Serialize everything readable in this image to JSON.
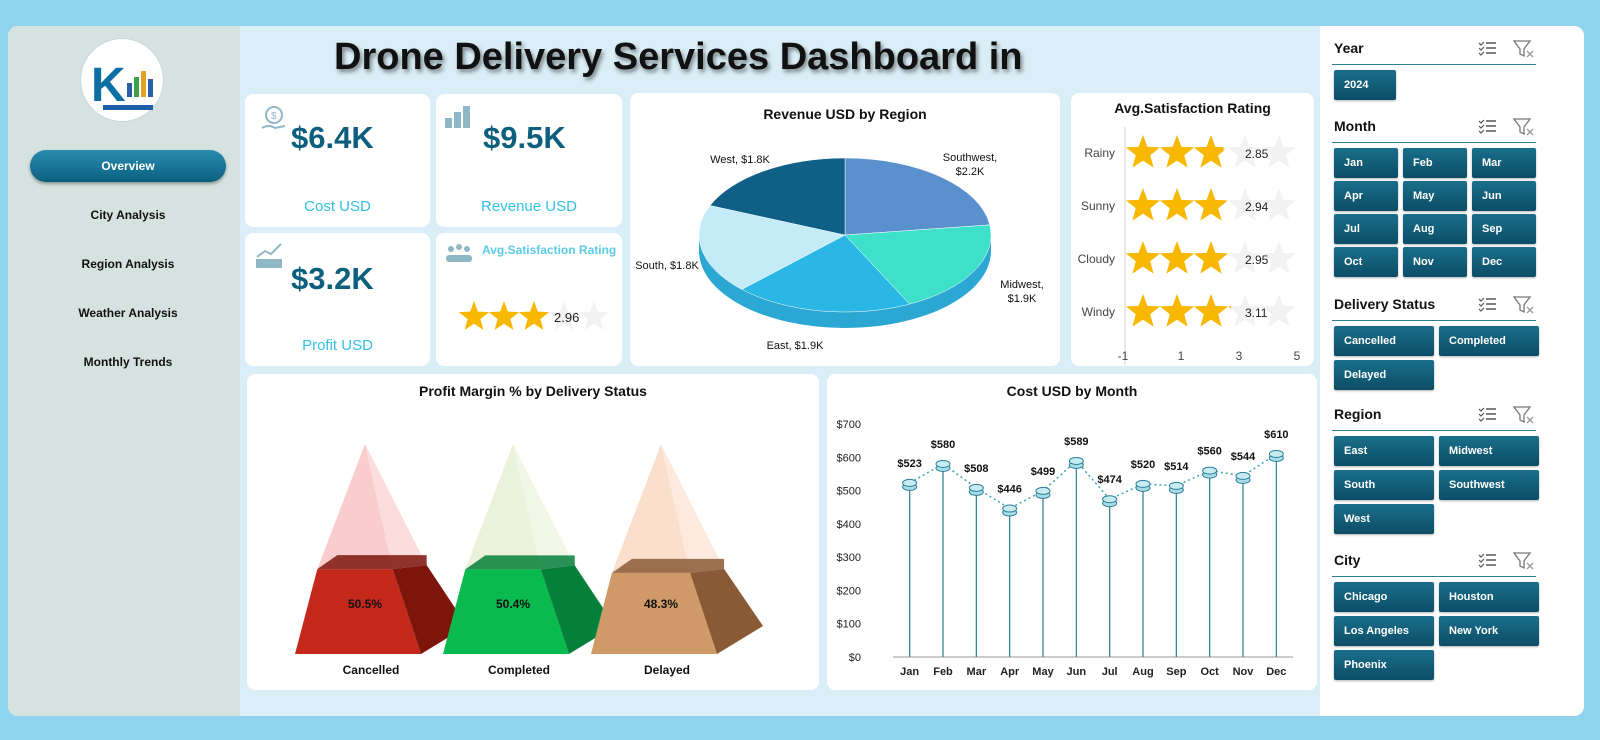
{
  "title": "Drone Delivery Services Dashboard in",
  "nav": {
    "items": [
      {
        "label": "Overview",
        "active": true
      },
      {
        "label": "City Analysis"
      },
      {
        "label": "Region Analysis"
      },
      {
        "label": "Weather Analysis"
      },
      {
        "label": "Monthly Trends"
      }
    ]
  },
  "kpis": {
    "cost": {
      "value": "$6.4K",
      "label": "Cost USD",
      "icon": "money-hand-icon"
    },
    "revenue": {
      "value": "$9.5K",
      "label": "Revenue USD",
      "icon": "coins-stack-icon"
    },
    "profit": {
      "value": "$3.2K",
      "label": "Profit USD",
      "icon": "profit-chart-icon"
    },
    "satisfaction": {
      "label": "Avg.Satisfaction Rating",
      "value": "2.96",
      "stars": 2.96,
      "icon": "people-rating-icon"
    }
  },
  "colors": {
    "accent": "#0d5f7e",
    "kpi_label": "#34c1e2",
    "star": "#f9b800",
    "slicer": "#0c4d66"
  },
  "chart_data": [
    {
      "type": "pie",
      "title": "Revenue USD by Region",
      "slices": [
        {
          "label": "Southwest",
          "value": 2.2,
          "display": "Southwest, $2.2K",
          "color": "#5b90cf"
        },
        {
          "label": "Midwest",
          "value": 1.9,
          "display": "Midwest, $1.9K",
          "color": "#3fe0c9"
        },
        {
          "label": "East",
          "value": 1.9,
          "display": "East, $1.9K",
          "color": "#2ab7e5"
        },
        {
          "label": "South",
          "value": 1.8,
          "display": "South, $1.8K",
          "color": "#c3ecf8"
        },
        {
          "label": "West",
          "value": 1.8,
          "display": "West, $1.8K",
          "color": "#0f5f86"
        }
      ]
    },
    {
      "type": "bar",
      "title": "Avg.Satisfaction Rating",
      "categories": [
        "Rainy",
        "Sunny",
        "Cloudy",
        "Windy"
      ],
      "values": [
        2.85,
        2.94,
        2.95,
        3.11
      ],
      "value_labels": [
        "2.85",
        "2.94",
        "2.95",
        "3.11"
      ],
      "xticks": [
        "-1",
        "1",
        "3",
        "5"
      ],
      "xlim": [
        -1,
        5
      ],
      "max_stars": 5
    },
    {
      "type": "bar",
      "title": "Profit Margin % by Delivery Status",
      "categories": [
        "Cancelled",
        "Completed",
        "Delayed"
      ],
      "values": [
        50.5,
        50.4,
        48.3
      ],
      "value_labels": [
        "50.5%",
        "50.4%",
        "48.3%"
      ],
      "colors": [
        "#c4281a",
        "#0aba4f",
        "#cf9a67"
      ]
    },
    {
      "type": "line",
      "title": "Cost USD by Month",
      "categories": [
        "Jan",
        "Feb",
        "Mar",
        "Apr",
        "May",
        "Jun",
        "Jul",
        "Aug",
        "Sep",
        "Oct",
        "Nov",
        "Dec"
      ],
      "values": [
        523,
        580,
        508,
        446,
        499,
        589,
        474,
        520,
        514,
        560,
        544,
        610
      ],
      "value_labels": [
        "$523",
        "$580",
        "$508",
        "$446",
        "$499",
        "$589",
        "$474",
        "$520",
        "$514",
        "$560",
        "$544",
        "$610"
      ],
      "yticks": [
        "$0",
        "$100",
        "$200",
        "$300",
        "$400",
        "$500",
        "$600",
        "$700"
      ],
      "ylim": [
        0,
        700
      ]
    }
  ],
  "slicers": {
    "year": {
      "title": "Year",
      "items": [
        "2024"
      ]
    },
    "month": {
      "title": "Month",
      "items": [
        "Jan",
        "Feb",
        "Mar",
        "Apr",
        "May",
        "Jun",
        "Jul",
        "Aug",
        "Sep",
        "Oct",
        "Nov",
        "Dec"
      ]
    },
    "delivery_status": {
      "title": "Delivery Status",
      "items": [
        "Cancelled",
        "Completed",
        "Delayed"
      ]
    },
    "region": {
      "title": "Region",
      "items": [
        "East",
        "Midwest",
        "South",
        "Southwest",
        "West"
      ]
    },
    "city": {
      "title": "City",
      "items": [
        "Chicago",
        "Houston",
        "Los Angeles",
        "New York",
        "Phoenix"
      ]
    }
  }
}
